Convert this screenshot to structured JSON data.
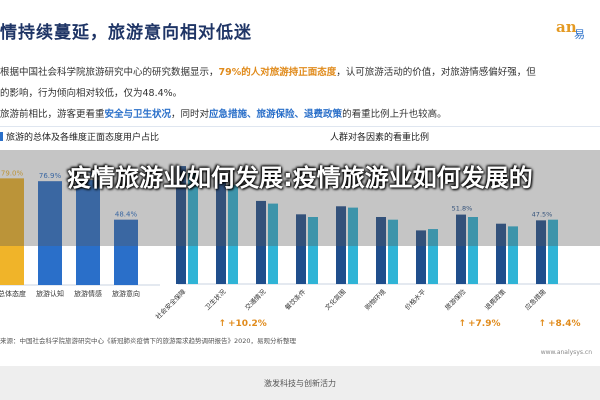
{
  "headline": "情持续蔓延，旅游意向相对低迷",
  "logo": {
    "mark": "an",
    "text": "易"
  },
  "paragraph": {
    "line1_a": "根据中国社会科学院旅游研究中心的研究数据显示，",
    "line1_b": "79%的人对旅游持正面态度",
    "line1_c": "，认可旅游活动的价值，对旅游情感偏好强，但",
    "line2": "的影响，行为倾向相对较低，仅为48.4%。",
    "line3_a": "旅游前相比，游客更看重",
    "line3_b": "安全与卫生状况",
    "line3_c": "，同时对",
    "line3_d": "应急措施、旅游保险、退费政策",
    "line3_e": "的看重比例上升也较高。"
  },
  "colors": {
    "gold": "#f0b429",
    "blue": "#2a6fc9",
    "accent": "#e08b1c",
    "navy": "#1f3566"
  },
  "chart_data": [
    {
      "type": "bar",
      "title": "旅游的总体及各维度正面态度用户占比",
      "categories": [
        "总体态度",
        "旅游认知",
        "旅游情感",
        "旅游意向"
      ],
      "values": [
        79.0,
        76.9,
        77.7,
        48.4
      ],
      "value_labels": [
        "79.0%",
        "76.9%",
        "77.7%",
        "48.4%"
      ],
      "ylim": [
        0,
        100
      ]
    },
    {
      "type": "bar",
      "title": "人群对各因素的看重比例",
      "categories": [
        "社会安全保障",
        "卫生状况",
        "交通情况",
        "餐饮条件",
        "文化氛围",
        "购物环境",
        "价格水平",
        "旅游保险",
        "退费政策",
        "应急措施"
      ],
      "series": [
        {
          "values": [
            88,
            78,
            62,
            52,
            58,
            50,
            40,
            51.8,
            45,
            47.5
          ]
        },
        {
          "values": [
            84,
            74,
            60,
            50,
            57,
            48,
            41,
            50,
            43,
            48
          ]
        }
      ],
      "ylim": [
        0,
        100
      ],
      "annotations": [
        {
          "label": "+10.2%",
          "category": "卫生状况"
        },
        {
          "label": "+7.9%",
          "category": "旅游保险"
        },
        {
          "label": "+8.4%",
          "category": "应急措施"
        }
      ],
      "visible_value_labels": [
        {
          "label": "51.8%",
          "category": "旅游保险"
        },
        {
          "label": "47.5%",
          "category": "应急措施"
        }
      ]
    }
  ],
  "source": "中国社会科学院旅游研究中心《新冠肺炎疫情下的旅游需求趋势调研报告》2020，易观分析整理",
  "source_prefix": "来源：",
  "watermark": "www.analysys.cn",
  "overlay_title": "疫情旅游业如何发展:疫情旅游业如何发展的",
  "footer": "激发科技与创新活力"
}
